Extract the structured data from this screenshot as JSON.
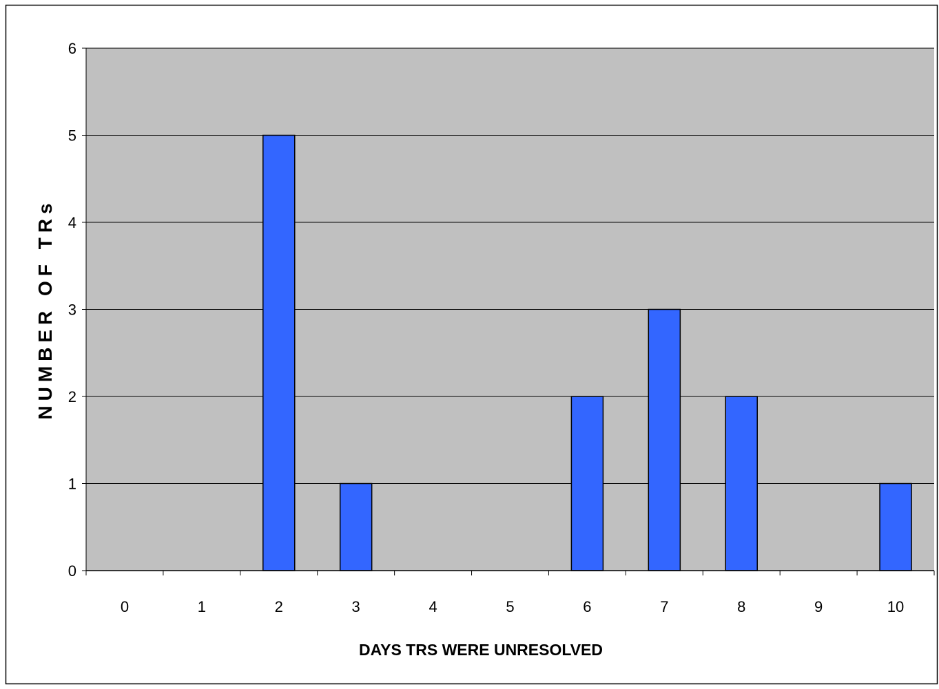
{
  "chart_data": {
    "type": "bar",
    "title": "",
    "xlabel": "DAYS TRS WERE UNRESOLVED",
    "ylabel": "NUMBER OF TRs",
    "categories": [
      "0",
      "1",
      "2",
      "3",
      "4",
      "5",
      "6",
      "7",
      "8",
      "9",
      "10"
    ],
    "values": [
      0,
      0,
      5,
      1,
      0,
      0,
      2,
      3,
      2,
      0,
      1
    ],
    "ylim": [
      0,
      6
    ],
    "yticks": [
      "0",
      "1",
      "2",
      "3",
      "4",
      "5",
      "6"
    ],
    "grid": true,
    "legend": "none",
    "colors": {
      "bar": "#3366ff",
      "plot_background": "#c0c0c0",
      "gridline": "#000000"
    }
  }
}
